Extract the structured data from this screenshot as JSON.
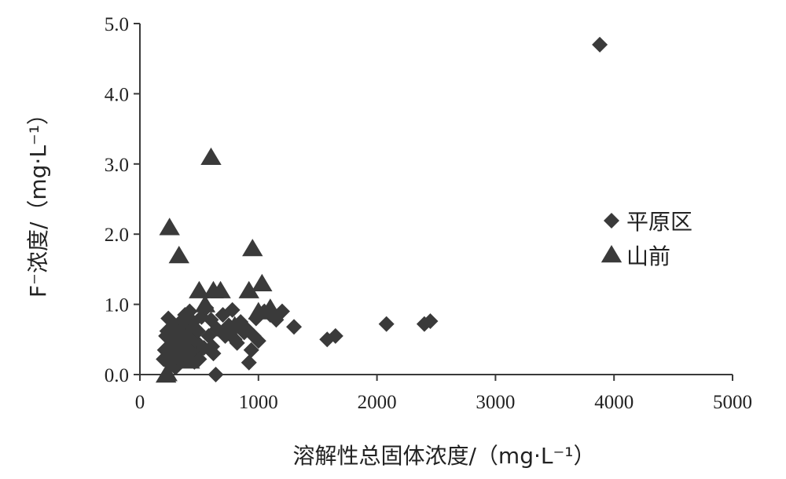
{
  "chart_data": {
    "type": "scatter",
    "title": "",
    "xlabel": "溶解性总固体浓度/（mg·L⁻¹）",
    "ylabel": "F⁻浓度/（mg·L⁻¹）",
    "xlim": [
      0,
      5000
    ],
    "ylim": [
      0,
      5.0
    ],
    "xticks": [
      0,
      1000,
      2000,
      3000,
      4000,
      5000
    ],
    "yticks": [
      0.0,
      1.0,
      2.0,
      3.0,
      4.0,
      5.0
    ],
    "xtick_labels": [
      "0",
      "1000",
      "2000",
      "3000",
      "4000",
      "5000"
    ],
    "ytick_labels": [
      "0.0",
      "1.0",
      "2.0",
      "3.0",
      "4.0",
      "5.0"
    ],
    "grid": false,
    "legend_position": "right",
    "colors": {
      "marker": "#3a3a3a",
      "axis": "#3a3a3a"
    },
    "series": [
      {
        "name": "平原区",
        "marker": "diamond",
        "points": [
          [
            200,
            0.22
          ],
          [
            210,
            0.35
          ],
          [
            220,
            0.55
          ],
          [
            230,
            0.62
          ],
          [
            240,
            0.8
          ],
          [
            250,
            0.15
          ],
          [
            260,
            0.42
          ],
          [
            270,
            0.3
          ],
          [
            280,
            0.5
          ],
          [
            290,
            0.7
          ],
          [
            300,
            0.1
          ],
          [
            310,
            0.25
          ],
          [
            320,
            0.38
          ],
          [
            330,
            0.6
          ],
          [
            340,
            0.45
          ],
          [
            350,
            0.2
          ],
          [
            360,
            0.78
          ],
          [
            370,
            0.33
          ],
          [
            380,
            0.85
          ],
          [
            390,
            0.52
          ],
          [
            400,
            0.68
          ],
          [
            410,
            0.4
          ],
          [
            420,
            0.9
          ],
          [
            430,
            0.28
          ],
          [
            440,
            0.55
          ],
          [
            450,
            0.75
          ],
          [
            460,
            0.18
          ],
          [
            470,
            0.48
          ],
          [
            480,
            0.3
          ],
          [
            490,
            0.62
          ],
          [
            500,
            0.22
          ],
          [
            520,
            0.82
          ],
          [
            540,
            0.38
          ],
          [
            560,
            0.95
          ],
          [
            580,
            0.55
          ],
          [
            600,
            0.78
          ],
          [
            610,
            0.4
          ],
          [
            620,
            0.3
          ],
          [
            640,
            0.0
          ],
          [
            650,
            0.65
          ],
          [
            700,
            0.85
          ],
          [
            720,
            0.55
          ],
          [
            750,
            0.7
          ],
          [
            780,
            0.92
          ],
          [
            800,
            0.5
          ],
          [
            820,
            0.45
          ],
          [
            850,
            0.75
          ],
          [
            880,
            0.6
          ],
          [
            900,
            0.65
          ],
          [
            920,
            0.17
          ],
          [
            940,
            0.35
          ],
          [
            960,
            0.55
          ],
          [
            980,
            0.8
          ],
          [
            1000,
            0.48
          ],
          [
            1050,
            0.9
          ],
          [
            1100,
            0.85
          ],
          [
            1150,
            0.78
          ],
          [
            1200,
            0.9
          ],
          [
            1300,
            0.68
          ],
          [
            1580,
            0.5
          ],
          [
            1650,
            0.55
          ],
          [
            2080,
            0.72
          ],
          [
            2400,
            0.72
          ],
          [
            2450,
            0.76
          ],
          [
            3880,
            4.7
          ]
        ]
      },
      {
        "name": "山前",
        "marker": "triangle",
        "points": [
          [
            220,
            0.0
          ],
          [
            230,
            0.02
          ],
          [
            250,
            2.1
          ],
          [
            330,
            1.7
          ],
          [
            300,
            0.4
          ],
          [
            350,
            0.55
          ],
          [
            400,
            0.3
          ],
          [
            450,
            0.7
          ],
          [
            500,
            1.2
          ],
          [
            550,
            1.0
          ],
          [
            600,
            3.1
          ],
          [
            620,
            1.2
          ],
          [
            680,
            1.2
          ],
          [
            750,
            0.65
          ],
          [
            800,
            0.7
          ],
          [
            920,
            1.2
          ],
          [
            950,
            1.8
          ],
          [
            1030,
            1.3
          ],
          [
            1000,
            0.9
          ],
          [
            1100,
            0.95
          ],
          [
            420,
            0.2
          ],
          [
            280,
            0.3
          ]
        ]
      }
    ]
  }
}
